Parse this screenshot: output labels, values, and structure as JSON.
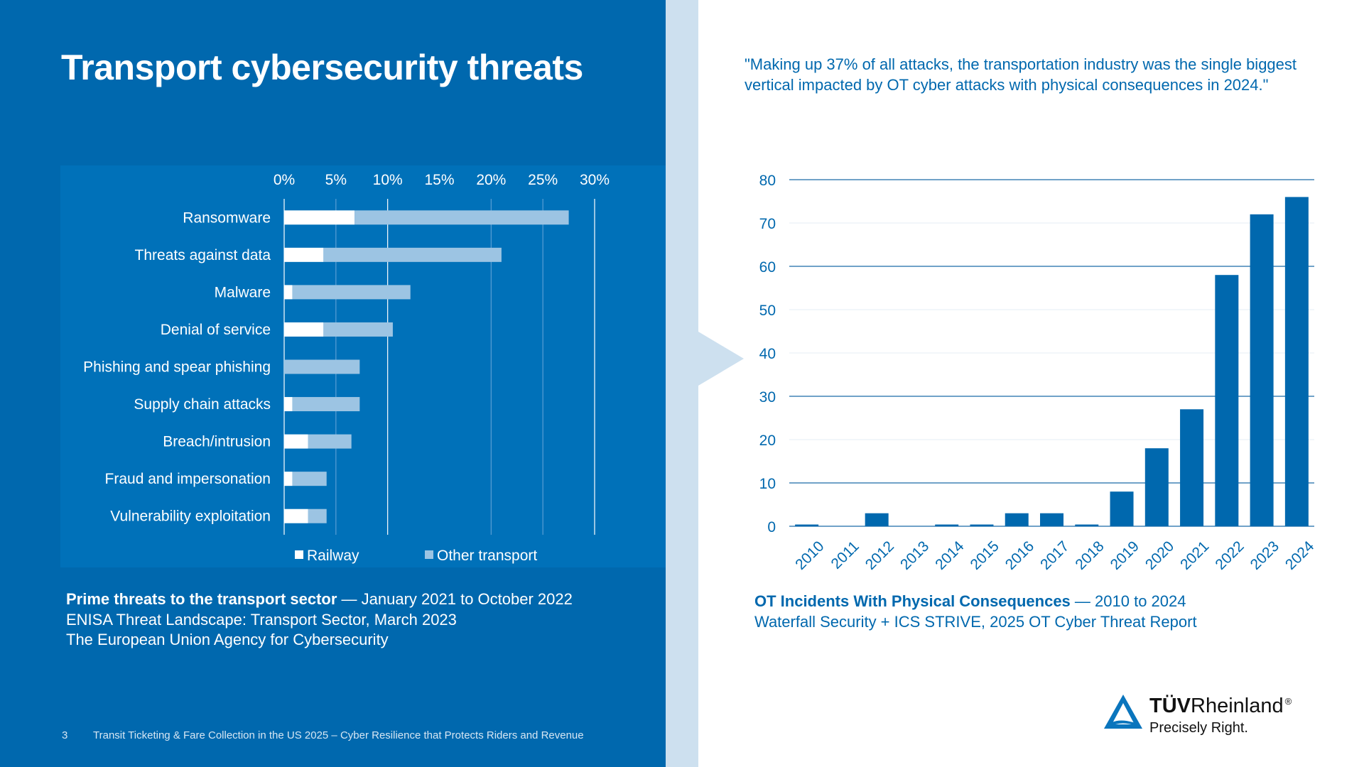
{
  "slide": {
    "title": "Transport cybersecurity threats",
    "page_number": "3",
    "footer_text": "Transit Ticketing & Fare Collection in the US 2025 – Cyber Resilience that Protects Riders and Revenue",
    "colors": {
      "primary_blue": "#0068ae",
      "light_blue": "#cde0ef",
      "bar_light": "#9cc4e3",
      "white": "#ffffff"
    }
  },
  "left_caption": {
    "bold": "Prime threats to the transport sector",
    "rest": " — January 2021 to October 2022",
    "line2": "ENISA Threat Landscape: Transport Sector, March 2023",
    "line3": "The European Union Agency for Cybersecurity"
  },
  "quote": "\"Making up 37% of all attacks, the transportation industry was the single biggest vertical impacted by OT cyber attacks with physical consequences in 2024.\"",
  "right_caption": {
    "bold": "OT Incidents With Physical Consequences",
    "rest": " — 2010 to 2024",
    "line2": "Waterfall Security + ICS STRIVE, 2025 OT Cyber Threat Report"
  },
  "logo": {
    "brand_bold": "TÜV",
    "brand_rest": "Rheinland",
    "registered": "®",
    "tagline": "Precisely Right."
  },
  "chart_data": [
    {
      "type": "bar",
      "orientation": "horizontal",
      "stacked": true,
      "title": "Prime threats to the transport sector",
      "categories": [
        "Ransomware",
        "Threats against data",
        "Malware",
        "Denial of service",
        "Phishing and spear phishing",
        "Supply chain attacks",
        "Breach/intrusion",
        "Fraud and impersonation",
        "Vulnerability exploitation"
      ],
      "series": [
        {
          "name": "Railway",
          "color": "#ffffff",
          "values": [
            6.8,
            3.8,
            0.8,
            3.8,
            0,
            0.8,
            2.3,
            0.8,
            2.3
          ]
        },
        {
          "name": "Other transport",
          "color": "#9cc4e3",
          "values": [
            20.7,
            17.2,
            11.4,
            6.7,
            7.3,
            6.5,
            4.2,
            3.3,
            1.8
          ]
        }
      ],
      "xticks": [
        "0%",
        "5%",
        "10%",
        "15%",
        "20%",
        "25%",
        "30%"
      ],
      "xlim": [
        0,
        30
      ],
      "xlabel": "",
      "ylabel": "",
      "grid": true,
      "legend": "bottom"
    },
    {
      "type": "bar",
      "title": "OT Incidents With Physical Consequences",
      "categories": [
        "2010",
        "2011",
        "2012",
        "2013",
        "2014",
        "2015",
        "2016",
        "2017",
        "2018",
        "2019",
        "2020",
        "2021",
        "2022",
        "2023",
        "2024"
      ],
      "values": [
        0.4,
        0,
        3,
        0,
        0.4,
        0.4,
        3,
        3,
        0.4,
        8,
        18,
        27,
        58,
        72,
        76
      ],
      "color": "#0068ae",
      "yticks": [
        "0",
        "10",
        "20",
        "30",
        "40",
        "50",
        "60",
        "70",
        "80"
      ],
      "ylim": [
        0,
        80
      ],
      "xlabel": "",
      "ylabel": "",
      "grid": true,
      "legend": "none"
    }
  ]
}
